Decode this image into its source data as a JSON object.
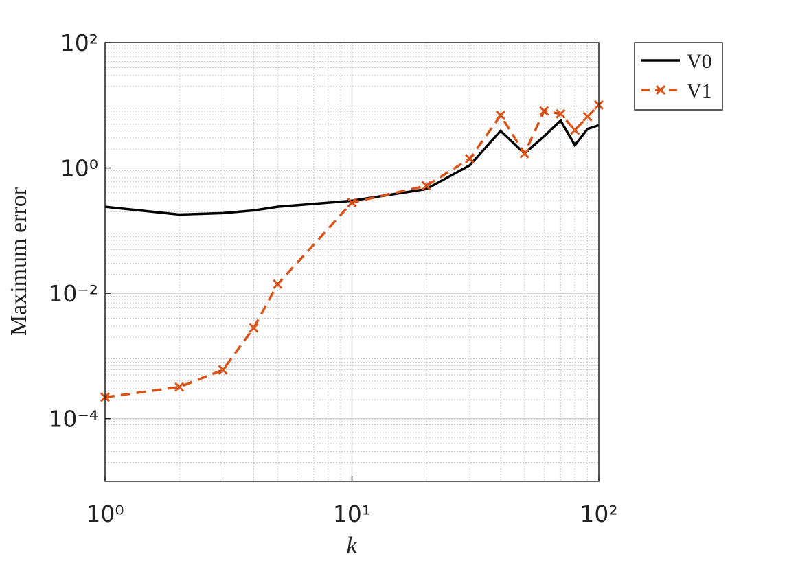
{
  "chart_data": {
    "type": "line",
    "x_label": "k",
    "y_label": "Maximum error",
    "xscale": "log",
    "yscale": "log",
    "grid": true,
    "legend_position": "outside-right",
    "x": [
      1,
      2,
      3,
      4,
      5,
      10,
      20,
      30,
      40,
      50,
      60,
      70,
      80,
      90,
      100
    ],
    "series": [
      {
        "name": "V0",
        "color": "#000000",
        "dash": "solid",
        "marker": "none",
        "values": [
          0.24,
          0.18,
          0.19,
          0.21,
          0.24,
          0.3,
          0.46,
          1.1,
          3.9,
          1.7,
          3.2,
          5.7,
          2.3,
          4.2,
          4.8
        ]
      },
      {
        "name": "V1",
        "color": "#d95319",
        "dash": "dashed",
        "marker": "x",
        "values": [
          0.00022,
          0.00032,
          0.0006,
          0.0028,
          0.014,
          0.28,
          0.52,
          1.4,
          6.9,
          1.7,
          8.1,
          7.3,
          4.0,
          6.6,
          10.1
        ]
      }
    ],
    "xlim": [
      1,
      100
    ],
    "xticks": [
      {
        "value": 1,
        "label": "10⁰"
      },
      {
        "value": 10,
        "label": "10¹"
      },
      {
        "value": 100,
        "label": "10²"
      }
    ],
    "ylim": [
      1e-05,
      100
    ],
    "yticks": [
      {
        "value": 0.0001,
        "label": "10⁻⁴"
      },
      {
        "value": 0.01,
        "label": "10⁻²"
      },
      {
        "value": 1,
        "label": "10⁰"
      },
      {
        "value": 100,
        "label": "10²"
      }
    ]
  }
}
